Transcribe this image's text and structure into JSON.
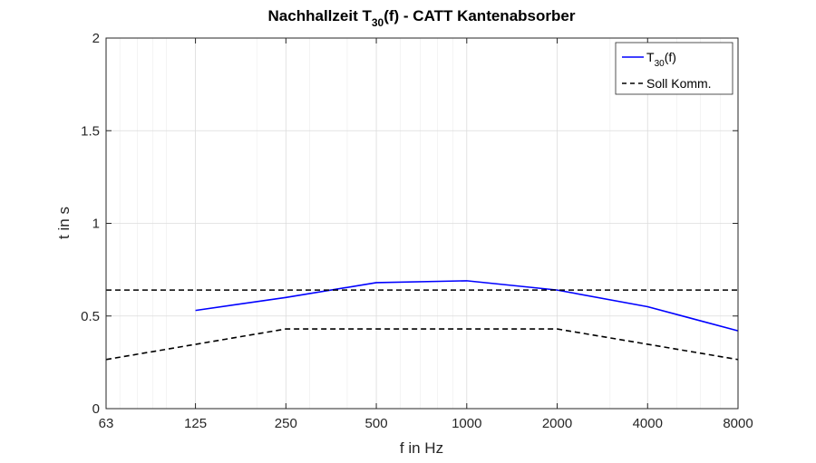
{
  "chart_data": {
    "type": "line",
    "title": "Nachhallzeit T30(f) - CATT Kantenabsorber",
    "title_parts": {
      "pre": "Nachhallzeit T",
      "sub": "30",
      "post": "(f) - CATT Kantenabsorber"
    },
    "xlabel": "f in Hz",
    "ylabel": "t in s",
    "x_scale": "log",
    "xlim": [
      63,
      8000
    ],
    "ylim": [
      0,
      2
    ],
    "x_ticks": [
      63,
      125,
      250,
      500,
      1000,
      2000,
      4000,
      8000
    ],
    "x_tick_labels": [
      "63",
      "125",
      "250",
      "500",
      "1000",
      "2000",
      "4000",
      "8000"
    ],
    "y_ticks": [
      0,
      0.5,
      1,
      1.5,
      2
    ],
    "y_tick_labels": [
      "0",
      "0.5",
      "1",
      "1.5",
      "2"
    ],
    "grid": true,
    "legend_position": "top-right",
    "series": [
      {
        "name": "T30(f)",
        "name_parts": {
          "pre": "T",
          "sub": "30",
          "post": "(f)"
        },
        "color": "#0000ff",
        "style": "solid",
        "x": [
          125,
          250,
          500,
          1000,
          2000,
          4000,
          8000
        ],
        "y": [
          0.53,
          0.6,
          0.68,
          0.69,
          0.64,
          0.55,
          0.42
        ]
      },
      {
        "name": "Soll Komm.",
        "color": "#000000",
        "style": "dashed",
        "x": [
          63,
          8000
        ],
        "y": [
          0.64,
          0.64
        ]
      },
      {
        "color": "#000000",
        "style": "dashed",
        "x": [
          63,
          250,
          2000,
          8000
        ],
        "y": [
          0.265,
          0.43,
          0.43,
          0.265
        ]
      }
    ]
  }
}
